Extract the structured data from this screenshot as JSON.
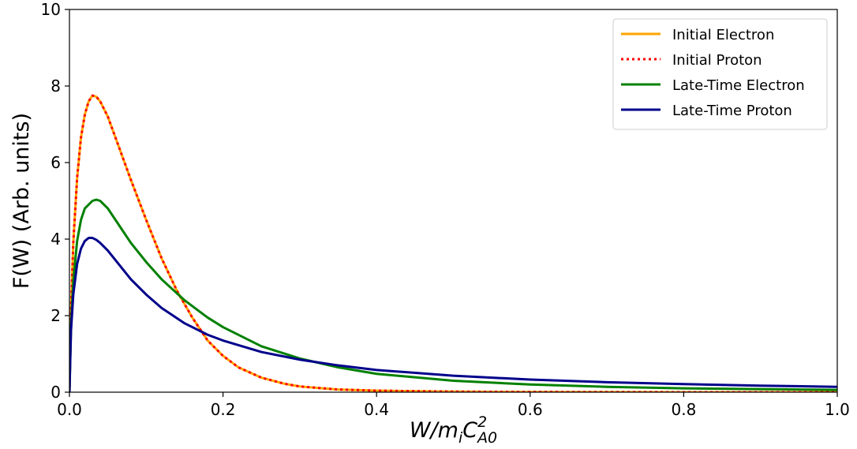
{
  "chart_data": {
    "type": "line",
    "title": "",
    "xlabel_parts": {
      "base": "W/m",
      "sub1": "i",
      "mid": "C",
      "sup": "2",
      "sub2": "A0"
    },
    "ylabel": "F(W) (Arb. units)",
    "xlim": [
      0.0,
      1.0
    ],
    "ylim": [
      0,
      10
    ],
    "xticks": [
      0.0,
      0.2,
      0.4,
      0.6,
      0.8,
      1.0
    ],
    "xtick_labels": [
      "0.0",
      "0.2",
      "0.4",
      "0.6",
      "0.8",
      "1.0"
    ],
    "yticks": [
      0,
      2,
      4,
      6,
      8,
      10
    ],
    "ytick_labels": [
      "0",
      "2",
      "4",
      "6",
      "8",
      "10"
    ],
    "grid": false,
    "legend_position": "top-right",
    "series": [
      {
        "name": "Initial Electron",
        "color": "#FFA500",
        "style": "solid",
        "points": [
          [
            0,
            0
          ],
          [
            0.002,
            2.1
          ],
          [
            0.005,
            3.9
          ],
          [
            0.01,
            5.6
          ],
          [
            0.015,
            6.65
          ],
          [
            0.02,
            7.25
          ],
          [
            0.025,
            7.6
          ],
          [
            0.03,
            7.75
          ],
          [
            0.035,
            7.72
          ],
          [
            0.04,
            7.6
          ],
          [
            0.05,
            7.2
          ],
          [
            0.06,
            6.65
          ],
          [
            0.07,
            6.1
          ],
          [
            0.08,
            5.55
          ],
          [
            0.1,
            4.5
          ],
          [
            0.12,
            3.5
          ],
          [
            0.14,
            2.65
          ],
          [
            0.15,
            2.3
          ],
          [
            0.16,
            1.95
          ],
          [
            0.18,
            1.35
          ],
          [
            0.2,
            0.95
          ],
          [
            0.22,
            0.65
          ],
          [
            0.25,
            0.38
          ],
          [
            0.28,
            0.22
          ],
          [
            0.3,
            0.15
          ],
          [
            0.35,
            0.07
          ],
          [
            0.4,
            0.04
          ],
          [
            0.5,
            0.015
          ],
          [
            0.6,
            0.005
          ],
          [
            0.7,
            0.002
          ],
          [
            0.8,
            0.001
          ],
          [
            1.0,
            0.0
          ]
        ]
      },
      {
        "name": "Initial Proton",
        "color": "#FF0000",
        "style": "dotted",
        "points": [
          [
            0,
            0
          ],
          [
            0.002,
            2.1
          ],
          [
            0.005,
            3.9
          ],
          [
            0.01,
            5.6
          ],
          [
            0.015,
            6.65
          ],
          [
            0.02,
            7.25
          ],
          [
            0.025,
            7.6
          ],
          [
            0.03,
            7.75
          ],
          [
            0.035,
            7.72
          ],
          [
            0.04,
            7.6
          ],
          [
            0.05,
            7.2
          ],
          [
            0.06,
            6.65
          ],
          [
            0.07,
            6.1
          ],
          [
            0.08,
            5.55
          ],
          [
            0.1,
            4.5
          ],
          [
            0.12,
            3.5
          ],
          [
            0.14,
            2.65
          ],
          [
            0.15,
            2.3
          ],
          [
            0.16,
            1.95
          ],
          [
            0.18,
            1.35
          ],
          [
            0.2,
            0.95
          ],
          [
            0.22,
            0.65
          ],
          [
            0.25,
            0.38
          ],
          [
            0.28,
            0.22
          ],
          [
            0.3,
            0.15
          ],
          [
            0.35,
            0.07
          ],
          [
            0.4,
            0.04
          ],
          [
            0.5,
            0.015
          ],
          [
            0.6,
            0.005
          ],
          [
            0.7,
            0.002
          ],
          [
            0.8,
            0.001
          ],
          [
            1.0,
            0.0
          ]
        ]
      },
      {
        "name": "Late-Time Electron",
        "color": "#008000",
        "style": "solid",
        "points": [
          [
            0,
            0
          ],
          [
            0.002,
            1.7
          ],
          [
            0.005,
            2.9
          ],
          [
            0.01,
            3.95
          ],
          [
            0.015,
            4.5
          ],
          [
            0.02,
            4.8
          ],
          [
            0.03,
            5.0
          ],
          [
            0.035,
            5.03
          ],
          [
            0.04,
            5.0
          ],
          [
            0.05,
            4.8
          ],
          [
            0.06,
            4.5
          ],
          [
            0.08,
            3.9
          ],
          [
            0.1,
            3.4
          ],
          [
            0.12,
            2.95
          ],
          [
            0.15,
            2.4
          ],
          [
            0.18,
            1.95
          ],
          [
            0.2,
            1.7
          ],
          [
            0.25,
            1.2
          ],
          [
            0.3,
            0.88
          ],
          [
            0.35,
            0.65
          ],
          [
            0.4,
            0.48
          ],
          [
            0.5,
            0.3
          ],
          [
            0.6,
            0.2
          ],
          [
            0.7,
            0.14
          ],
          [
            0.8,
            0.1
          ],
          [
            0.9,
            0.08
          ],
          [
            1.0,
            0.06
          ]
        ]
      },
      {
        "name": "Late-Time Proton",
        "color": "#00008B",
        "style": "solid",
        "points": [
          [
            0,
            0
          ],
          [
            0.002,
            1.6
          ],
          [
            0.005,
            2.55
          ],
          [
            0.01,
            3.35
          ],
          [
            0.015,
            3.75
          ],
          [
            0.02,
            3.95
          ],
          [
            0.025,
            4.03
          ],
          [
            0.03,
            4.03
          ],
          [
            0.035,
            3.98
          ],
          [
            0.04,
            3.9
          ],
          [
            0.05,
            3.7
          ],
          [
            0.06,
            3.45
          ],
          [
            0.08,
            2.95
          ],
          [
            0.1,
            2.55
          ],
          [
            0.12,
            2.2
          ],
          [
            0.15,
            1.8
          ],
          [
            0.18,
            1.5
          ],
          [
            0.2,
            1.35
          ],
          [
            0.25,
            1.05
          ],
          [
            0.3,
            0.85
          ],
          [
            0.35,
            0.7
          ],
          [
            0.4,
            0.58
          ],
          [
            0.5,
            0.43
          ],
          [
            0.6,
            0.33
          ],
          [
            0.7,
            0.26
          ],
          [
            0.8,
            0.21
          ],
          [
            0.9,
            0.17
          ],
          [
            1.0,
            0.14
          ]
        ]
      }
    ]
  }
}
